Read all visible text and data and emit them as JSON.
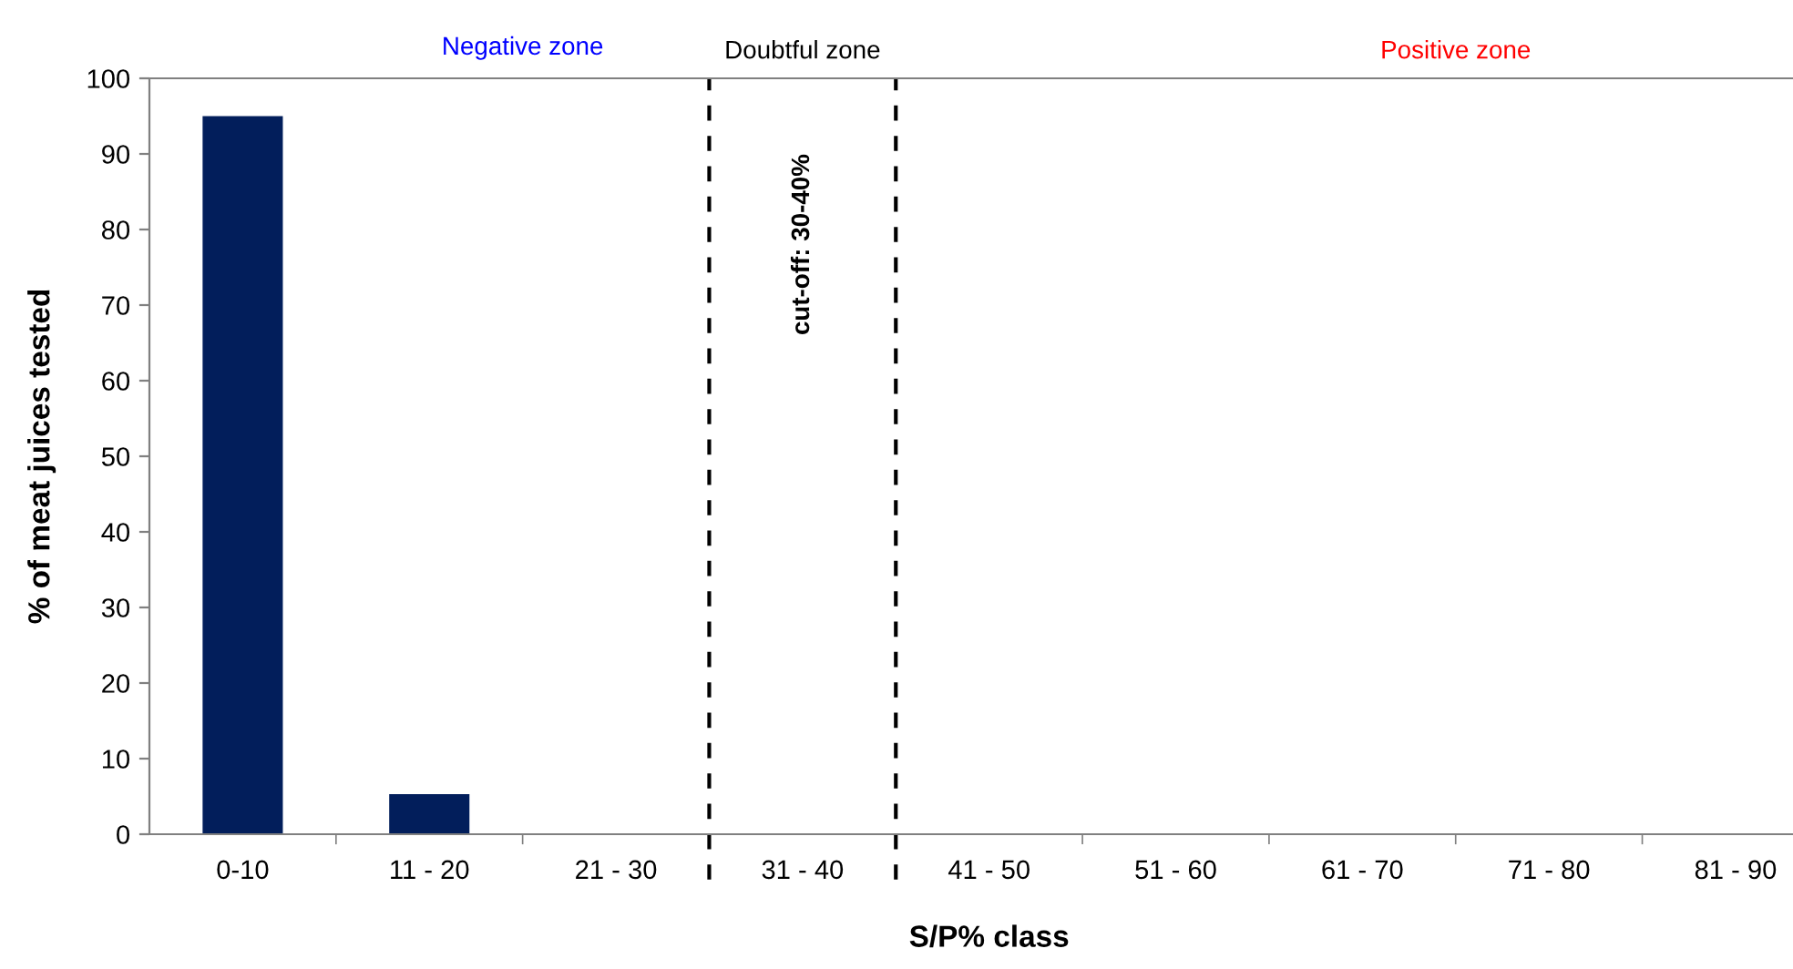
{
  "chart_data": {
    "type": "bar",
    "xlabel": "S/P% class",
    "ylabel": "% of meat juices tested",
    "categories": [
      "0-10",
      "11 - 20",
      "21 - 30",
      "31 - 40",
      "41 - 50",
      "51 - 60",
      "61 - 70",
      "71 - 80",
      "81 - 90"
    ],
    "values": [
      95,
      5.3,
      0,
      0,
      0,
      0,
      0,
      0,
      0
    ],
    "color": "#021e5b",
    "ylim": [
      0,
      100
    ],
    "yticks": [
      0,
      10,
      20,
      30,
      40,
      50,
      60,
      70,
      80,
      90,
      100
    ],
    "annotations": [
      "Negative zone",
      "Doubtful zone",
      "Positive zone",
      "cut-off: 30-40%"
    ]
  }
}
